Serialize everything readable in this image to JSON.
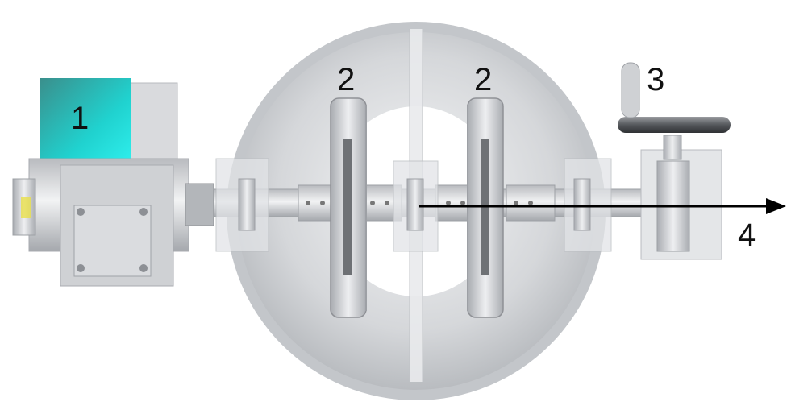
{
  "labels": {
    "motor": "1",
    "disc_left": "2",
    "disc_right": "2",
    "handwheel": "3",
    "shaft_arrow": "4"
  },
  "colors": {
    "motor_cover": "#22d9d6",
    "metal_light": "#e6e7e9",
    "metal_mid": "#c8c9cc",
    "metal_dark": "#8f9196",
    "housing": "#d2d4d7",
    "arrow": "#000000"
  },
  "icons": {
    "motor": "motor-icon",
    "handwheel": "handwheel-icon",
    "arrow": "arrow-icon"
  }
}
